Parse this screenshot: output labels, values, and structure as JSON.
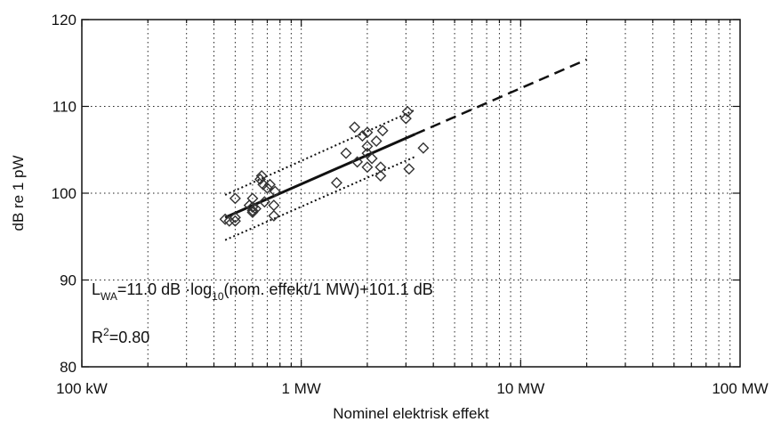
{
  "chart_data": {
    "type": "scatter",
    "title": "",
    "xlabel": "Nominel elektrisk effekt",
    "ylabel": "dB re 1 pW",
    "x_scale": "log",
    "x_unit": "MW",
    "xlim": [
      0.1,
      100
    ],
    "ylim": [
      80,
      120
    ],
    "grid": true,
    "x_ticks": [
      {
        "value": 0.1,
        "label": "100 kW"
      },
      {
        "value": 1,
        "label": "1 MW"
      },
      {
        "value": 10,
        "label": "10 MW"
      },
      {
        "value": 100,
        "label": "100 MW"
      }
    ],
    "y_ticks": [
      {
        "value": 80,
        "label": "80"
      },
      {
        "value": 90,
        "label": "90"
      },
      {
        "value": 100,
        "label": "100"
      },
      {
        "value": 110,
        "label": "110"
      },
      {
        "value": 120,
        "label": "120"
      }
    ],
    "series": [
      {
        "kind": "markers",
        "marker": "diamond-open",
        "points": [
          [
            0.45,
            97.0
          ],
          [
            0.47,
            96.8
          ],
          [
            0.5,
            99.4
          ],
          [
            0.5,
            97.2
          ],
          [
            0.5,
            96.8
          ],
          [
            0.58,
            98.6
          ],
          [
            0.6,
            98.0
          ],
          [
            0.6,
            98.4
          ],
          [
            0.6,
            97.8
          ],
          [
            0.6,
            99.4
          ],
          [
            0.62,
            98.2
          ],
          [
            0.65,
            101.6
          ],
          [
            0.66,
            102.0
          ],
          [
            0.67,
            101.0
          ],
          [
            0.68,
            99.0
          ],
          [
            0.7,
            100.6
          ],
          [
            0.72,
            101.0
          ],
          [
            0.75,
            98.6
          ],
          [
            0.75,
            97.4
          ],
          [
            0.76,
            100.2
          ],
          [
            1.45,
            101.2
          ],
          [
            1.6,
            104.6
          ],
          [
            1.75,
            107.6
          ],
          [
            1.8,
            103.6
          ],
          [
            1.9,
            106.6
          ],
          [
            2.0,
            107.0
          ],
          [
            2.0,
            105.4
          ],
          [
            2.0,
            104.6
          ],
          [
            2.1,
            104.0
          ],
          [
            2.0,
            103.0
          ],
          [
            2.2,
            106.0
          ],
          [
            2.3,
            103.0
          ],
          [
            2.3,
            102.0
          ],
          [
            2.35,
            107.2
          ],
          [
            3.0,
            108.6
          ],
          [
            3.05,
            109.4
          ],
          [
            3.1,
            102.8
          ],
          [
            3.6,
            105.2
          ]
        ]
      },
      {
        "kind": "line",
        "style": "solid",
        "points": [
          [
            0.45,
            97.2
          ],
          [
            3.3,
            106.8
          ]
        ]
      },
      {
        "kind": "line",
        "style": "dashed",
        "points": [
          [
            3.3,
            106.8
          ],
          [
            20,
            115.4
          ]
        ]
      },
      {
        "kind": "line",
        "style": "dotted",
        "points": [
          [
            0.45,
            99.8
          ],
          [
            3.3,
            109.6
          ]
        ]
      },
      {
        "kind": "line",
        "style": "dotted",
        "points": [
          [
            0.45,
            94.6
          ],
          [
            3.3,
            104.2
          ]
        ]
      }
    ],
    "annotations": {
      "equation": {
        "parts": [
          {
            "t": "L",
            "pos": "base"
          },
          {
            "t": "WA",
            "pos": "sub"
          },
          {
            "t": "=11.0 dB ·log",
            "pos": "base"
          },
          {
            "t": "10",
            "pos": "sub"
          },
          {
            "t": "(nom. effekt/1 MW)+101.1 dB",
            "pos": "base"
          }
        ]
      },
      "r2": {
        "parts": [
          {
            "t": "R",
            "pos": "base"
          },
          {
            "t": "2",
            "pos": "sup"
          },
          {
            "t": "=0.80",
            "pos": "base"
          }
        ]
      }
    }
  }
}
